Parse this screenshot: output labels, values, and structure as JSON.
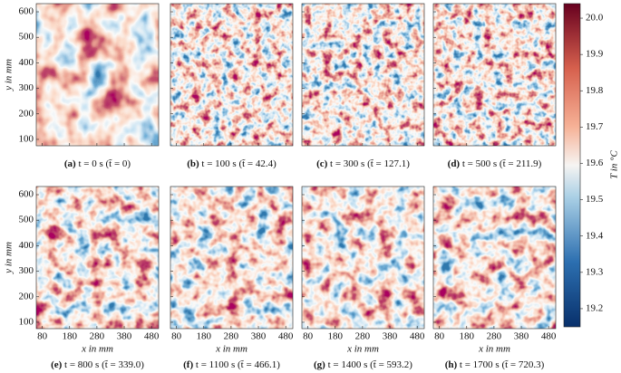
{
  "chart_data": {
    "type": "image-grid",
    "panels": [
      {
        "label": "(a)",
        "caption": "t = 0 s (t̃ = 0)"
      },
      {
        "label": "(b)",
        "caption": "t = 100 s (t̃ = 42.4)"
      },
      {
        "label": "(c)",
        "caption": "t = 300 s (t̃ = 127.1)"
      },
      {
        "label": "(d)",
        "caption": "t = 500 s (t̃ = 211.9)"
      },
      {
        "label": "(e)",
        "caption": "t = 800 s (t̃ = 339.0)"
      },
      {
        "label": "(f)",
        "caption": "t = 1100 s (t̃ = 466.1)"
      },
      {
        "label": "(g)",
        "caption": "t = 1400 s (t̃ = 593.2)"
      },
      {
        "label": "(h)",
        "caption": "t = 1700 s (t̃ = 720.3)"
      }
    ],
    "xlabel": "x in mm",
    "ylabel": "y in mm",
    "xlim": [
      58,
      506
    ],
    "xticks": [
      80,
      180,
      280,
      380,
      480
    ],
    "ylim": [
      75,
      632
    ],
    "yticks": [
      100,
      200,
      300,
      400,
      500,
      600
    ],
    "colorbar": {
      "label": "T in °C",
      "lim": [
        19.15,
        20.04
      ],
      "ticks": [
        19.2,
        19.3,
        19.4,
        19.5,
        19.6,
        19.7,
        19.8,
        19.9,
        {
          "value": 20.0,
          "label": "20.0"
        }
      ]
    }
  }
}
